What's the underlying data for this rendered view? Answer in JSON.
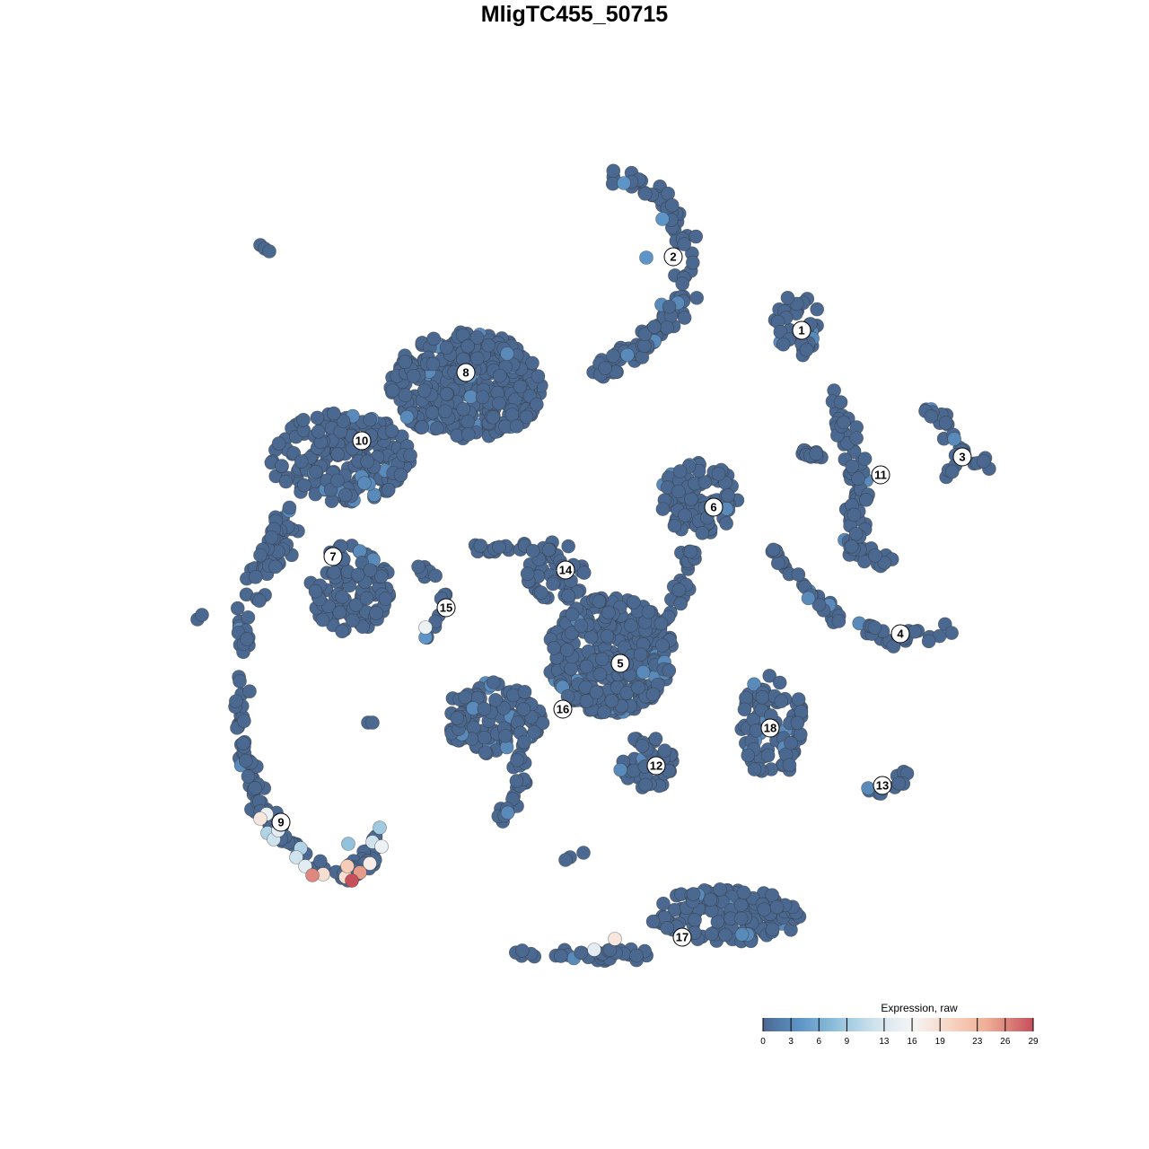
{
  "chart_data": {
    "type": "scatter",
    "title": "MligTC455_50715",
    "xlabel": "",
    "ylabel": "",
    "axes_visible": false,
    "grid": false,
    "legend": {
      "title": "Expression, raw",
      "placement": "bottom-right",
      "ticks": [
        0,
        3,
        6,
        9,
        13,
        16,
        19,
        23,
        26,
        29
      ],
      "range": [
        0,
        29
      ],
      "colors": [
        {
          "v": 0,
          "c": "#4a6890"
        },
        {
          "v": 4,
          "c": "#5e95c8"
        },
        {
          "v": 8,
          "c": "#92c2dc"
        },
        {
          "v": 12,
          "c": "#cfe3ee"
        },
        {
          "v": 16,
          "c": "#f5f5f5"
        },
        {
          "v": 20,
          "c": "#f8d6c4"
        },
        {
          "v": 24,
          "c": "#efae96"
        },
        {
          "v": 29,
          "c": "#c64f5c"
        }
      ]
    },
    "clusters": [
      {
        "label": "1",
        "label_at": [
          25.3,
          27.2
        ],
        "parts": [
          {
            "blob": [
              24.7,
              27.8
            ],
            "spread": [
              2.8,
              3.5
            ],
            "n": 40
          }
        ]
      },
      {
        "label": "2",
        "label_at": [
          11,
          35.4
        ],
        "parts": [
          {
            "arc": [
              [
                5,
                44.5
              ],
              [
                10,
                41.5
              ],
              [
                13,
                36
              ],
              [
                12,
                31
              ],
              [
                9,
                27
              ],
              [
                6,
                24
              ],
              [
                2.5,
                22.5
              ]
            ],
            "spread": 2,
            "n": 110
          }
        ]
      },
      {
        "label": "3",
        "label_at": [
          43.2,
          13.1
        ],
        "parts": [
          {
            "arc": [
              [
                38.7,
                19.3
              ],
              [
                41,
                17
              ],
              [
                43,
                13.5
              ],
              [
                46.5,
                12.2
              ]
            ],
            "spread": 1.2,
            "n": 24
          },
          {
            "arc": [
              [
                41,
                10.5
              ],
              [
                43,
                12
              ]
            ],
            "spread": 0.6,
            "n": 6
          }
        ]
      },
      {
        "label": "4",
        "label_at": [
          36.3,
          -6.6
        ],
        "parts": [
          {
            "arc": [
              [
                22,
                3.5
              ],
              [
                25,
                -1
              ],
              [
                30,
                -5
              ],
              [
                36,
                -7.5
              ],
              [
                41.5,
                -6.5
              ]
            ],
            "spread": 1.3,
            "n": 55
          }
        ]
      },
      {
        "label": "5",
        "label_at": [
          5.1,
          -9.9
        ],
        "parts": [
          {
            "blob": [
              4,
              -9
            ],
            "spread": [
              7,
              6.5
            ],
            "n": 350
          }
        ]
      },
      {
        "label": "6",
        "label_at": [
          15.5,
          7.5
        ],
        "parts": [
          {
            "blob": [
              14,
              8.5
            ],
            "spread": [
              4.5,
              4
            ],
            "n": 90
          },
          {
            "arc": [
              [
                13,
                4
              ],
              [
                12,
                -2
              ],
              [
                10,
                -5
              ]
            ],
            "spread": 1.5,
            "n": 25
          }
        ]
      },
      {
        "label": "7",
        "label_at": [
          -26.9,
          2
        ],
        "parts": [
          {
            "blob": [
              -25,
              -1.5
            ],
            "spread": [
              4.5,
              5
            ],
            "n": 110
          }
        ]
      },
      {
        "label": "8",
        "label_at": [
          -12.1,
          22.5
        ],
        "parts": [
          {
            "blob": [
              -12,
              21
            ],
            "spread": [
              8.5,
              6
            ],
            "n": 350
          }
        ]
      },
      {
        "label": "9",
        "label_at": [
          -32.7,
          -27.6
        ],
        "parts": [
          {
            "arc": [
              [
                -37,
                -4
              ],
              [
                -37,
                -12
              ],
              [
                -37,
                -18
              ],
              [
                -36.5,
                -22
              ],
              [
                -35,
                -26
              ],
              [
                -31,
                -31
              ],
              [
                -26,
                -33.5
              ],
              [
                -23,
                -32
              ],
              [
                -22,
                -29
              ]
            ],
            "spread": 1.6,
            "n": 120
          }
        ]
      },
      {
        "label": "10",
        "label_at": [
          -23.7,
          14.9
        ],
        "parts": [
          {
            "blob": [
              -26,
              13
            ],
            "spread": [
              8,
              5
            ],
            "n": 200
          },
          {
            "arc": [
              [
                -32,
                7
              ],
              [
                -34,
                2
              ],
              [
                -36,
                -2
              ]
            ],
            "spread": 2.5,
            "n": 60
          }
        ]
      },
      {
        "label": "11",
        "label_at": [
          34.1,
          11.1
        ],
        "parts": [
          {
            "arc": [
              [
                29,
                20
              ],
              [
                31,
                14
              ],
              [
                32,
                8
              ],
              [
                30.5,
                3
              ],
              [
                35,
                1
              ]
            ],
            "spread": 1.8,
            "n": 85
          },
          {
            "arc": [
              [
                24,
                14
              ],
              [
                28,
                13
              ]
            ],
            "spread": 0.8,
            "n": 15
          }
        ]
      },
      {
        "label": "12",
        "label_at": [
          9.1,
          -21.3
        ],
        "parts": [
          {
            "blob": [
              8,
              -21
            ],
            "spread": [
              3,
              3
            ],
            "n": 45
          }
        ]
      },
      {
        "label": "13",
        "label_at": [
          34.3,
          -23.5
        ],
        "parts": [
          {
            "arc": [
              [
                32,
                -24
              ],
              [
                35,
                -24.5
              ],
              [
                37,
                -22
              ]
            ],
            "spread": 0.8,
            "n": 12
          }
        ]
      },
      {
        "label": "14",
        "label_at": [
          -1,
          0.5
        ],
        "parts": [
          {
            "blob": [
              -2,
              0.5
            ],
            "spread": [
              3.5,
              3.5
            ],
            "n": 45
          },
          {
            "arc": [
              [
                -11,
                2.8
              ],
              [
                -5,
                3
              ]
            ],
            "spread": 0.8,
            "n": 15
          }
        ]
      },
      {
        "label": "15",
        "label_at": [
          -14.3,
          -3.7
        ],
        "parts": [
          {
            "arc": [
              [
                -18,
                1.5
              ],
              [
                -15,
                -1
              ],
              [
                -14.5,
                -4
              ],
              [
                -16.5,
                -7
              ]
            ],
            "spread": 0.8,
            "n": 15
          }
        ]
      },
      {
        "label": "16",
        "label_at": [
          -1.3,
          -15
        ],
        "parts": [
          {
            "blob": [
              -9,
              -16
            ],
            "spread": [
              5.5,
              4
            ],
            "n": 120
          },
          {
            "arc": [
              [
                -6,
                -20
              ],
              [
                -6,
                -24
              ],
              [
                -8,
                -27
              ]
            ],
            "spread": 1.2,
            "n": 25
          }
        ]
      },
      {
        "label": "17",
        "label_at": [
          12,
          -40.4
        ],
        "parts": [
          {
            "blob": [
              17,
              -38
            ],
            "spread": [
              8.5,
              3
            ],
            "n": 140
          },
          {
            "arc": [
              [
                -6,
                -42
              ],
              [
                3,
                -42.5
              ],
              [
                8,
                -42
              ]
            ],
            "spread": 1,
            "n": 35
          }
        ]
      },
      {
        "label": "18",
        "label_at": [
          21.8,
          -17.1
        ],
        "parts": [
          {
            "blob": [
              22,
              -17
            ],
            "spread": [
              3.5,
              6
            ],
            "n": 90
          }
        ]
      }
    ],
    "isolated_points": [
      [
        -35,
        36.7,
        0
      ],
      [
        -34.5,
        36.3,
        0
      ],
      [
        -34,
        36,
        0
      ],
      [
        -42,
        -5,
        0
      ],
      [
        -41.5,
        -4.5,
        0
      ],
      [
        -23,
        -16.5,
        0
      ],
      [
        -22.5,
        -16.5,
        0
      ],
      [
        1,
        -31,
        0
      ],
      [
        -0.5,
        -31.5,
        0
      ],
      [
        -1,
        -31.8,
        0
      ]
    ],
    "expressing_points": [
      [
        -35,
        -27.2,
        18
      ],
      [
        -34.3,
        -26.7,
        15
      ],
      [
        -33,
        -28.5,
        14
      ],
      [
        -34.2,
        -28.8,
        10
      ],
      [
        -33.5,
        -29.5,
        12
      ],
      [
        -29.2,
        -33.5,
        26
      ],
      [
        -28,
        -33.4,
        19
      ],
      [
        -25.3,
        -32.5,
        21
      ],
      [
        -24.8,
        -34.1,
        29
      ],
      [
        -23.9,
        -33.2,
        25
      ],
      [
        -25.5,
        -33.7,
        19
      ],
      [
        -22.8,
        -32.2,
        17
      ],
      [
        -21.5,
        -30.3,
        15
      ],
      [
        -21.7,
        -28.2,
        9
      ],
      [
        -22.5,
        -29.8,
        12
      ],
      [
        -25.2,
        -30,
        8
      ],
      [
        -31,
        -31.5,
        12
      ],
      [
        -30,
        -32.5,
        14
      ],
      [
        -30.5,
        -30.5,
        10
      ],
      [
        4.5,
        -40.6,
        18
      ],
      [
        2.2,
        -41.8,
        14
      ],
      [
        -16.6,
        -5.9,
        15
      ],
      [
        -16.6,
        -7,
        4
      ],
      [
        8,
        35.3,
        4
      ],
      [
        9.8,
        39.6,
        4
      ],
      [
        5.5,
        43.6,
        4
      ]
    ]
  }
}
